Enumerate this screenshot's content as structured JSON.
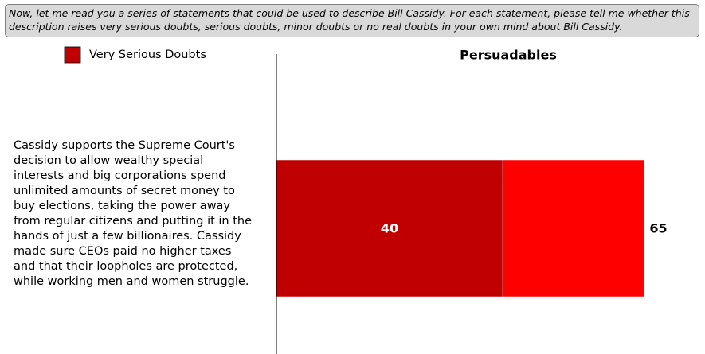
{
  "chart_data": {
    "type": "bar",
    "orientation": "horizontal",
    "overlap": true,
    "question": "Now, let me read you a series of statements that could be used to describe Bill  Cassidy. For each statement, please tell me whether this description raises very serious doubts, serious doubts, minor doubts or no real doubts in your own mind about Bill Cassidy.",
    "title": "Persuadables",
    "categories": [
      "Cassidy supports the Supreme Court's decision to allow wealthy special interests and big corporations spend unlimited amounts of secret money to buy elections, taking the power away from regular citizens and putting it in the hands of just a few billionaires. Cassidy made sure CEOs paid no higher taxes and that their loopholes are protected, while working men and women struggle."
    ],
    "series": [
      {
        "name": "Very Serious Doubts",
        "color": "#c00000",
        "label_color": "#ffffff",
        "values": [
          40
        ]
      },
      {
        "color": "#ff0000",
        "label_color": "#000000",
        "values": [
          65
        ]
      }
    ],
    "xlim": [
      0,
      75
    ]
  }
}
